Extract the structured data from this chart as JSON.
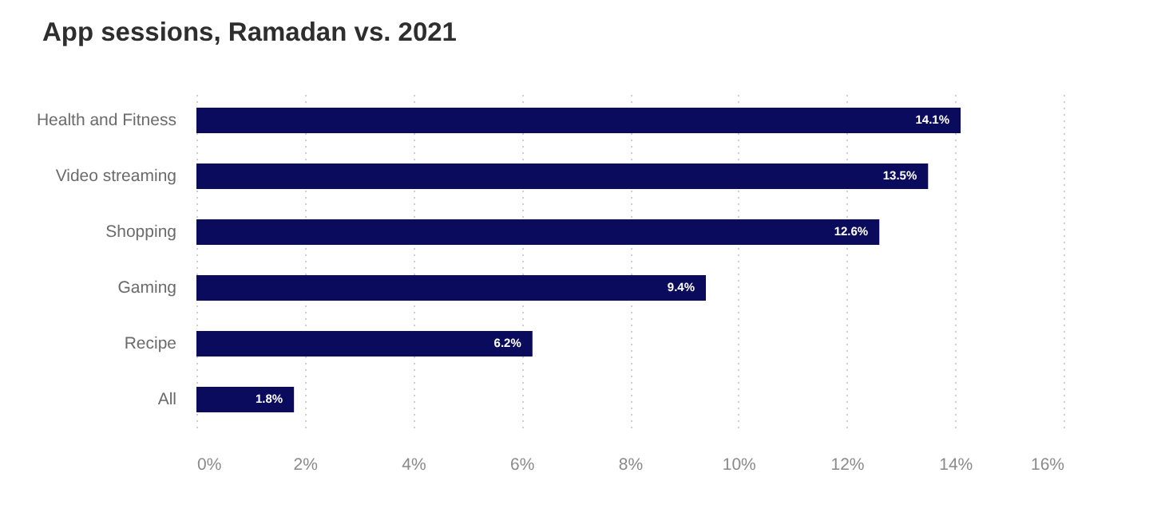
{
  "chart_data": {
    "type": "bar",
    "title": "App sessions, Ramadan vs. 2021",
    "orientation": "horizontal",
    "categories": [
      "Health and Fitness",
      "Video streaming",
      "Shopping",
      "Gaming",
      "Recipe",
      "All"
    ],
    "values": [
      14.1,
      13.5,
      12.6,
      9.4,
      6.2,
      1.8
    ],
    "color": "#0b0b5e",
    "value_labels": [
      "14.1%",
      "13.5%",
      "12.6%",
      "9.4%",
      "6.2%",
      "1.8%"
    ],
    "xlim": [
      0,
      16
    ],
    "xticks": [
      {
        "value": 0,
        "label": "0%"
      },
      {
        "value": 2,
        "label": "2%"
      },
      {
        "value": 4,
        "label": "4%"
      },
      {
        "value": 6,
        "label": "6%"
      },
      {
        "value": 8,
        "label": "8%"
      },
      {
        "value": 10,
        "label": "10%"
      },
      {
        "value": 12,
        "label": "12%"
      },
      {
        "value": 14,
        "label": "14%"
      },
      {
        "value": 16,
        "label": "16%"
      }
    ],
    "grid": "x"
  }
}
